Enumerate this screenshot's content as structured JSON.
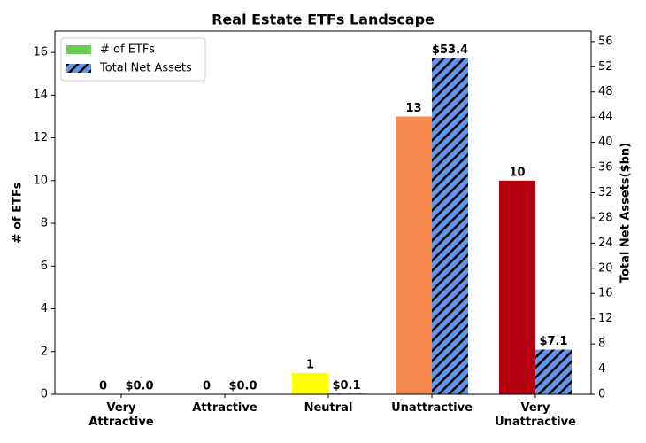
{
  "chart_data": {
    "type": "bar",
    "title": "Real Estate ETFs Landscape",
    "categories": [
      "Very\nAttractive",
      "Attractive",
      "Neutral",
      "Unattractive",
      "Very\nUnattractive"
    ],
    "series": [
      {
        "name": "# of ETFs",
        "color": "#66cc55",
        "colors": [
          "#66cc55",
          "#66cc55",
          "#ffff00",
          "#f78a50",
          "#b5000f"
        ],
        "values": [
          0,
          0,
          1,
          13,
          10
        ]
      },
      {
        "name": "Total Net Assets",
        "color": "#6495ed",
        "axis": "y2",
        "hatch": true,
        "values": [
          0.0,
          0.0,
          0.1,
          53.4,
          7.1
        ],
        "value_labels": [
          "$0.0",
          "$0.0",
          "$0.1",
          "$53.4",
          "$7.1"
        ]
      }
    ],
    "ylabel": "# of ETFs",
    "y2label": "Total Net Assets($bn)",
    "ylim": [
      0,
      17
    ],
    "yticks": [
      0,
      2,
      4,
      6,
      8,
      10,
      12,
      14,
      16
    ],
    "y2lim": [
      0,
      57.67
    ],
    "y2ticks": [
      0,
      4,
      8,
      12,
      16,
      20,
      24,
      28,
      32,
      36,
      40,
      44,
      48,
      52,
      56
    ],
    "legend": "upper left"
  }
}
